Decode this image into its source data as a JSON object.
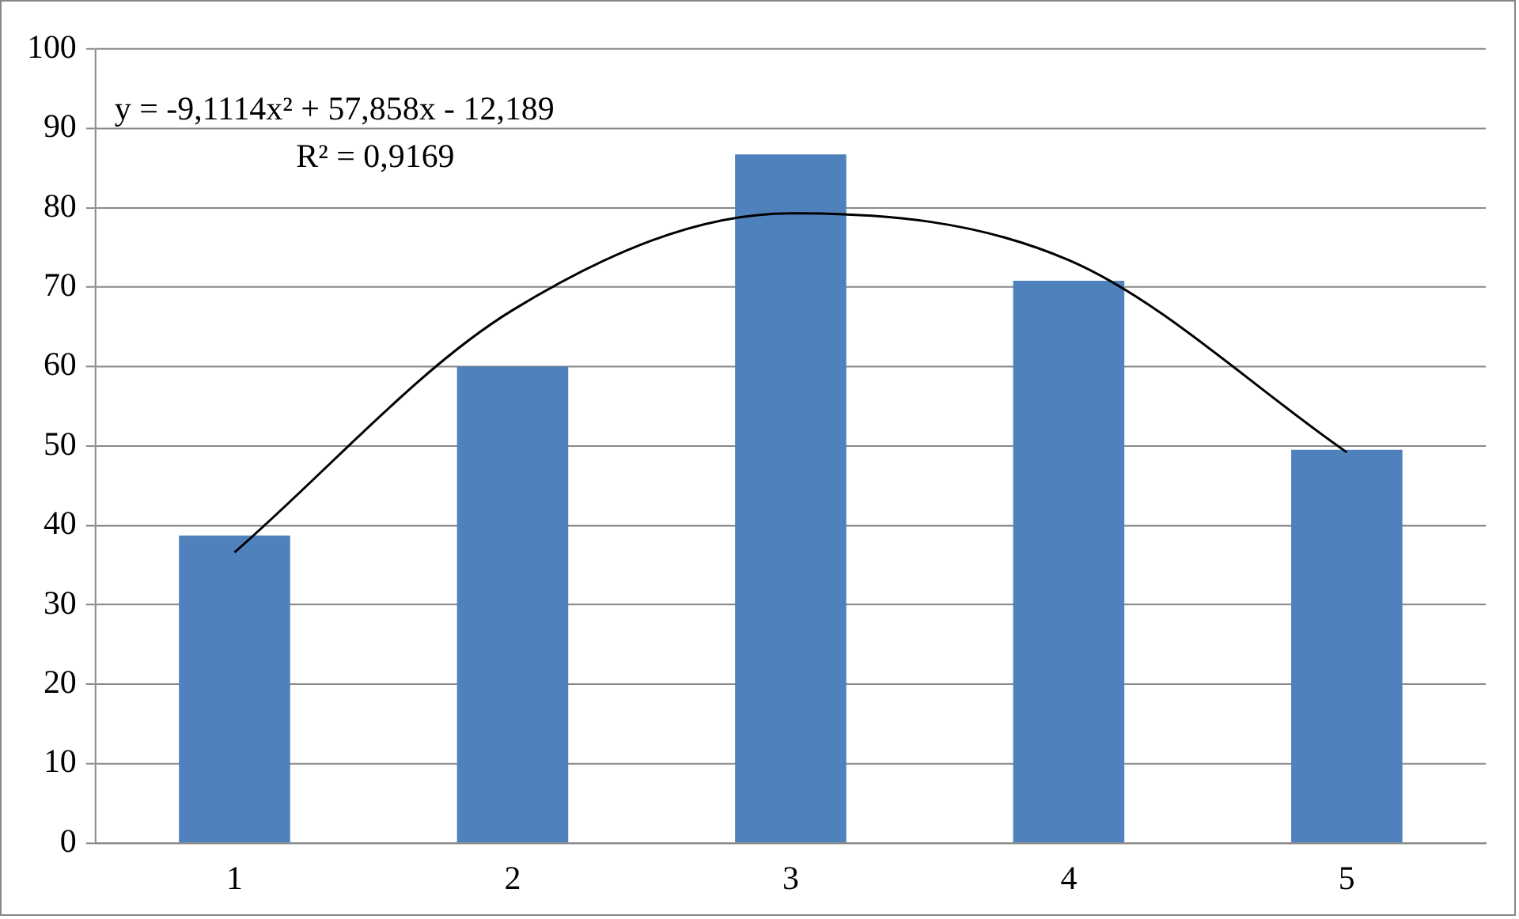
{
  "chart_data": {
    "type": "bar",
    "categories": [
      "1",
      "2",
      "3",
      "4",
      "5"
    ],
    "series": [
      {
        "color": "#4f81bd",
        "values": [
          38.7,
          60.0,
          86.7,
          70.8,
          49.5
        ]
      },
      {
        "type": "line",
        "color": "#000000",
        "values": [
          36.6,
          67.1,
          79.3,
          73.4,
          49.2
        ]
      }
    ],
    "ylim": [
      0,
      100
    ],
    "yticks": [
      0,
      10,
      20,
      30,
      40,
      50,
      60,
      70,
      80,
      90,
      100
    ],
    "grid": "y",
    "legend": false,
    "marker": "none",
    "annotations": [
      "y = -9,1114x² + 57,858x - 12,189",
      "R² = 0,9169"
    ]
  }
}
